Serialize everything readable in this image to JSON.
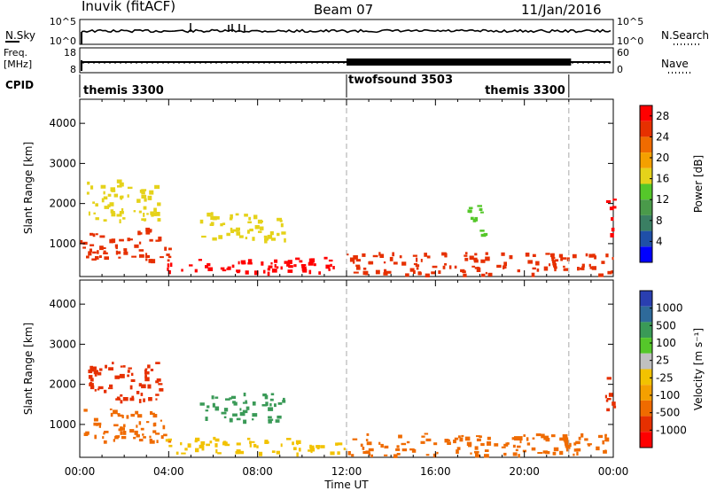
{
  "header": {
    "station": "Inuvik (fitACF)",
    "beam": "Beam 07",
    "date": "11/Jan/2016"
  },
  "noise_panel": {
    "left_label": "N.Sky",
    "left_ticks": [
      "10^5",
      "10^0"
    ],
    "right_label": "N.Search",
    "right_ticks": [
      "10^5",
      "10^0"
    ]
  },
  "freq_panel": {
    "left_label_1": "Freq.",
    "left_label_2": "[MHz]",
    "left_ticks": [
      "18",
      "8"
    ],
    "right_label": "Nave",
    "right_ticks": [
      "60",
      "0"
    ]
  },
  "cpid_panel": {
    "label": "CPID",
    "modes": [
      {
        "name": "themis 3300",
        "start_hour": 0,
        "end_hour": 12
      },
      {
        "name": "twofsound 3503",
        "start_hour": 12,
        "end_hour": 22
      },
      {
        "name": "themis 3300",
        "start_hour": 22,
        "end_hour": 24
      }
    ]
  },
  "colors": {
    "power": [
      "#0000ff",
      "#1f4fa8",
      "#3a7f63",
      "#4a9a4a",
      "#55c72a",
      "#e5d21a",
      "#f4a000",
      "#ef6b00",
      "#e63000",
      "#ff0000"
    ],
    "velocity": [
      "#ff0000",
      "#e63000",
      "#ef6b00",
      "#f4a000",
      "#f2c200",
      "#c0c0c0",
      "#55c72a",
      "#3a9a57",
      "#2e6a9a",
      "#2a3fb0"
    ]
  },
  "chart_data": [
    {
      "type": "heatmap",
      "parameter": "Power",
      "xlabel": "",
      "ylabel": "Slant Range [km]",
      "xlim": [
        0,
        24
      ],
      "ylim": [
        180,
        4600
      ],
      "x_ticks": [
        "00:00",
        "04:00",
        "08:00",
        "12:00",
        "16:00",
        "20:00",
        "00:00"
      ],
      "y_ticks": [
        1000,
        2000,
        3000,
        4000
      ],
      "colorbar": {
        "label": "Power [dB]",
        "ticks": [
          4,
          8,
          12,
          16,
          20,
          24,
          28
        ],
        "range": [
          0,
          30
        ]
      },
      "regions": [
        {
          "t0": 0.0,
          "t1": 4.0,
          "r0": 600,
          "r1": 1400,
          "value": 26
        },
        {
          "t0": 0.3,
          "t1": 3.6,
          "r0": 1600,
          "r1": 2600,
          "value": 17
        },
        {
          "t0": 3.8,
          "t1": 12.0,
          "r0": 300,
          "r1": 700,
          "value": 27
        },
        {
          "t0": 5.4,
          "t1": 9.2,
          "r0": 1100,
          "r1": 1800,
          "value": 15
        },
        {
          "t0": 12.0,
          "t1": 24.0,
          "r0": 250,
          "r1": 800,
          "value": 24
        },
        {
          "t0": 17.4,
          "t1": 18.2,
          "r0": 1200,
          "r1": 2000,
          "value": 13
        },
        {
          "t0": 23.6,
          "t1": 24.0,
          "r0": 1200,
          "r1": 2200,
          "value": 28
        }
      ]
    },
    {
      "type": "heatmap",
      "parameter": "Velocity",
      "xlabel": "Time UT",
      "ylabel": "Slant Range [km]",
      "xlim": [
        0,
        24
      ],
      "ylim": [
        180,
        4600
      ],
      "x_ticks": [
        "00:00",
        "04:00",
        "08:00",
        "12:00",
        "16:00",
        "20:00",
        "00:00"
      ],
      "y_ticks": [
        1000,
        2000,
        3000,
        4000
      ],
      "colorbar": {
        "label": "Velocity [m s⁻¹]",
        "ticks": [
          "1000",
          "500",
          "100",
          "25",
          "-25",
          "-100",
          "-500",
          "-1000"
        ]
      },
      "regions": [
        {
          "t0": 0.0,
          "t1": 4.0,
          "r0": 600,
          "r1": 1400,
          "value": "-200"
        },
        {
          "t0": 0.3,
          "t1": 3.6,
          "r0": 1600,
          "r1": 2600,
          "value": "-600"
        },
        {
          "t0": 3.8,
          "t1": 12.0,
          "r0": 300,
          "r1": 700,
          "value": "0"
        },
        {
          "t0": 5.4,
          "t1": 9.2,
          "r0": 1100,
          "r1": 1800,
          "value": "200"
        },
        {
          "t0": 12.0,
          "t1": 24.0,
          "r0": 250,
          "r1": 800,
          "value": "-150"
        },
        {
          "t0": 23.6,
          "t1": 24.0,
          "r0": 1200,
          "r1": 2200,
          "value": "-900"
        }
      ]
    }
  ]
}
